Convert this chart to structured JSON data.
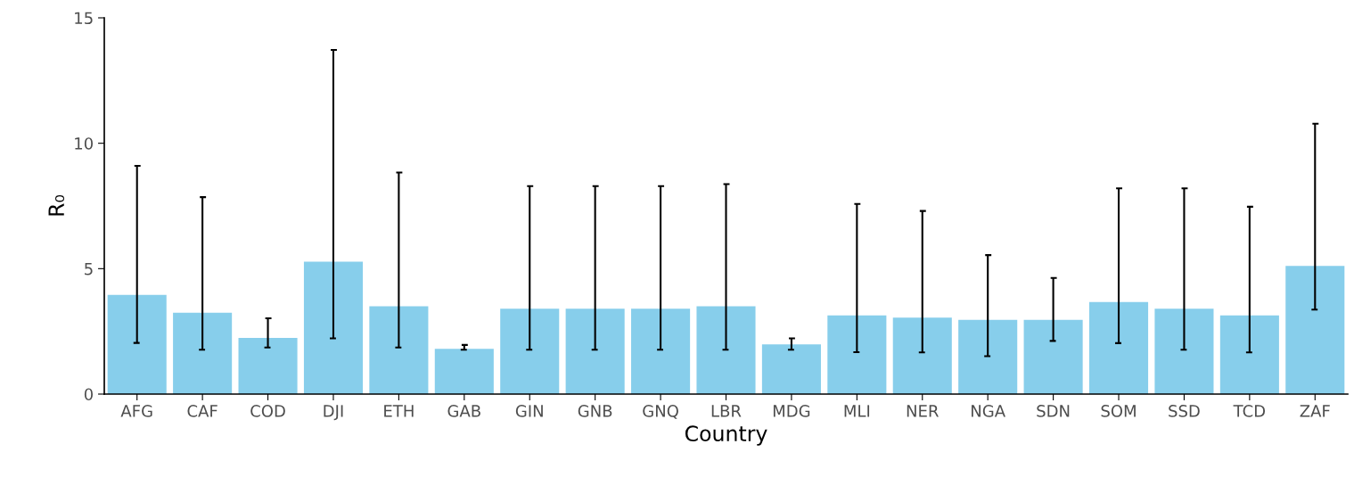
{
  "chart_data": {
    "type": "bar",
    "xlabel": "Country",
    "ylabel": "R₀",
    "categories": [
      "AFG",
      "CAF",
      "COD",
      "DJI",
      "ETH",
      "GAB",
      "GIN",
      "GNB",
      "GNQ",
      "LBR",
      "MDG",
      "MLI",
      "NER",
      "NGA",
      "SDN",
      "SOM",
      "SSD",
      "TCD",
      "ZAF"
    ],
    "values": [
      3.95,
      3.24,
      2.24,
      5.28,
      3.5,
      1.8,
      3.4,
      3.4,
      3.4,
      3.5,
      1.98,
      3.14,
      3.05,
      2.96,
      2.96,
      3.67,
      3.4,
      3.14,
      5.11
    ],
    "errors": [
      [
        2.04,
        9.1
      ],
      [
        1.77,
        7.85
      ],
      [
        1.86,
        3.02
      ],
      [
        2.22,
        13.72
      ],
      [
        1.86,
        8.83
      ],
      [
        1.77,
        1.96
      ],
      [
        1.77,
        8.29
      ],
      [
        1.77,
        8.29
      ],
      [
        1.77,
        8.29
      ],
      [
        1.77,
        8.37
      ],
      [
        1.77,
        2.22
      ],
      [
        1.67,
        7.58
      ],
      [
        1.66,
        7.3
      ],
      [
        1.51,
        5.54
      ],
      [
        2.12,
        4.63
      ],
      [
        2.03,
        8.2
      ],
      [
        1.77,
        8.2
      ],
      [
        1.66,
        7.47
      ],
      [
        3.37,
        10.78
      ]
    ],
    "color": "#87ceeb",
    "ylim": [
      0,
      15
    ],
    "yticks": [
      0,
      5,
      10,
      15
    ],
    "grid": false,
    "legend": false
  }
}
